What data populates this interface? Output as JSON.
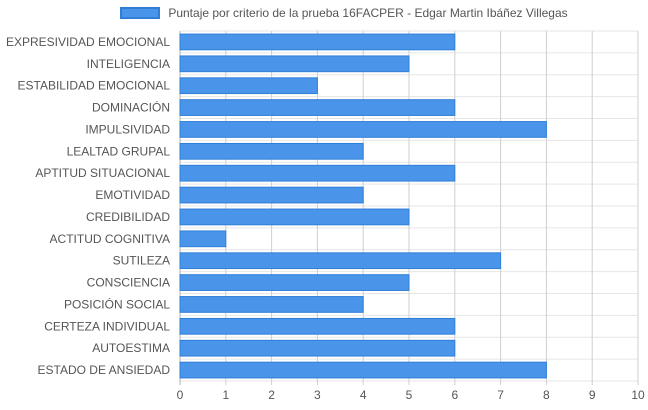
{
  "legend": {
    "label": "Puntaje por criterio de la prueba 16FACPER - Edgar Martin Ibáñez Villegas",
    "color": "#4a95ea"
  },
  "chart_data": {
    "type": "bar",
    "orientation": "horizontal",
    "title": "",
    "xlabel": "",
    "ylabel": "",
    "xlim": [
      0,
      10
    ],
    "xticks": [
      0,
      1,
      2,
      3,
      4,
      5,
      6,
      7,
      8,
      9,
      10
    ],
    "grid": true,
    "legend_position": "top-center",
    "categories": [
      "EXPRESIVIDAD EMOCIONAL",
      "INTELIGENCIA",
      "ESTABILIDAD EMOCIONAL",
      "DOMINACIÓN",
      "IMPULSIVIDAD",
      "LEALTAD GRUPAL",
      "APTITUD SITUACIONAL",
      "EMOTIVIDAD",
      "CREDIBILIDAD",
      "ACTITUD COGNITIVA",
      "SUTILEZA",
      "CONSCIENCIA",
      "POSICIÓN SOCIAL",
      "CERTEZA INDIVIDUAL",
      "AUTOESTIMA",
      "ESTADO DE ANSIEDAD"
    ],
    "series": [
      {
        "name": "Puntaje por criterio de la prueba 16FACPER - Edgar Martin Ibáñez Villegas",
        "color": "#4a95ea",
        "values": [
          6,
          5,
          3,
          6,
          8,
          4,
          6,
          4,
          5,
          1,
          7,
          5,
          4,
          6,
          6,
          8
        ]
      }
    ]
  }
}
